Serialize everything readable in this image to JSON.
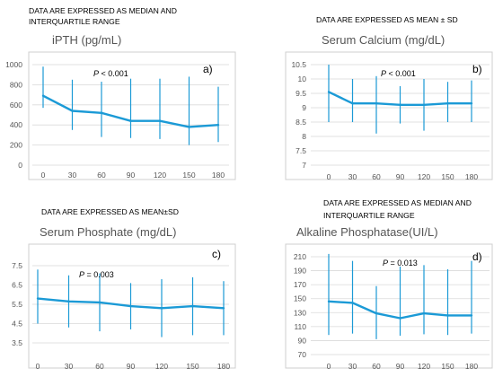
{
  "chart_data": [
    {
      "type": "line",
      "panel": "a)",
      "note_lines": [
        "DATA ARE EXPRESSED AS MEDIAN AND",
        "INTERQUARTILE RANGE"
      ],
      "title": "iPTH  (pg/mL)",
      "pvalue_prefix": "P",
      "pvalue_rest": " < 0.001",
      "x": [
        0,
        30,
        60,
        90,
        120,
        150,
        180
      ],
      "y": [
        690,
        540,
        520,
        440,
        440,
        380,
        400
      ],
      "err_low": [
        570,
        350,
        280,
        270,
        260,
        200,
        230
      ],
      "err_high": [
        980,
        850,
        830,
        860,
        860,
        880,
        780
      ],
      "yticks": [
        "0",
        "200",
        "400",
        "600",
        "800",
        "1000"
      ],
      "ylim": [
        0,
        1000
      ]
    },
    {
      "type": "line",
      "panel": "b)",
      "note_lines": [
        "DATA ARE EXPRESSED AS MEAN ± SD"
      ],
      "title": "Serum Calcium (mg/dL)",
      "pvalue_prefix": "P",
      "pvalue_rest": " < 0.001",
      "x": [
        0,
        30,
        60,
        90,
        120,
        150,
        180
      ],
      "y": [
        9.55,
        9.15,
        9.15,
        9.1,
        9.1,
        9.15,
        9.15
      ],
      "err_low": [
        8.5,
        8.5,
        8.1,
        8.45,
        8.2,
        8.5,
        8.5
      ],
      "err_high": [
        10.5,
        10.0,
        10.1,
        9.75,
        10.0,
        9.9,
        9.95
      ],
      "yticks": [
        "7",
        "7.5",
        "8",
        "8.5",
        "9",
        "9.5",
        "10",
        "10.5"
      ],
      "ylim": [
        7,
        10.5
      ]
    },
    {
      "type": "line",
      "panel": "c)",
      "note_lines": [
        "DATA ARE EXPRESSED AS MEAN±SD"
      ],
      "title": "Serum Phosphate (mg/dL)",
      "pvalue_prefix": "P",
      "pvalue_rest": " = 0.003",
      "x": [
        0,
        30,
        60,
        90,
        120,
        150,
        180
      ],
      "y": [
        5.8,
        5.65,
        5.6,
        5.4,
        5.3,
        5.4,
        5.3
      ],
      "err_low": [
        4.5,
        4.3,
        4.1,
        4.2,
        3.8,
        3.9,
        3.9
      ],
      "err_high": [
        7.3,
        7.0,
        7.1,
        6.6,
        6.8,
        6.9,
        6.7
      ],
      "yticks": [
        "3.5",
        "4.5",
        "5.5",
        "6.5",
        "7.5"
      ],
      "ylim": [
        3.5,
        7.5
      ]
    },
    {
      "type": "line",
      "panel": "d)",
      "note_lines": [
        "DATA ARE EXPRESSED AS MEDIAN AND",
        "INTERQUARTILE RANGE"
      ],
      "title": "Alkaline Phosphatase(UI/L)",
      "pvalue_prefix": "P",
      "pvalue_rest": " = 0.013",
      "x": [
        0,
        30,
        60,
        90,
        120,
        150,
        180
      ],
      "y": [
        146,
        144,
        129,
        122,
        129,
        126,
        126
      ],
      "err_low": [
        98,
        100,
        92,
        97,
        99,
        98,
        100
      ],
      "err_high": [
        214,
        204,
        168,
        196,
        198,
        192,
        204
      ],
      "yticks": [
        "70",
        "90",
        "110",
        "130",
        "150",
        "170",
        "190",
        "210"
      ],
      "ylim": [
        70,
        210
      ]
    }
  ]
}
